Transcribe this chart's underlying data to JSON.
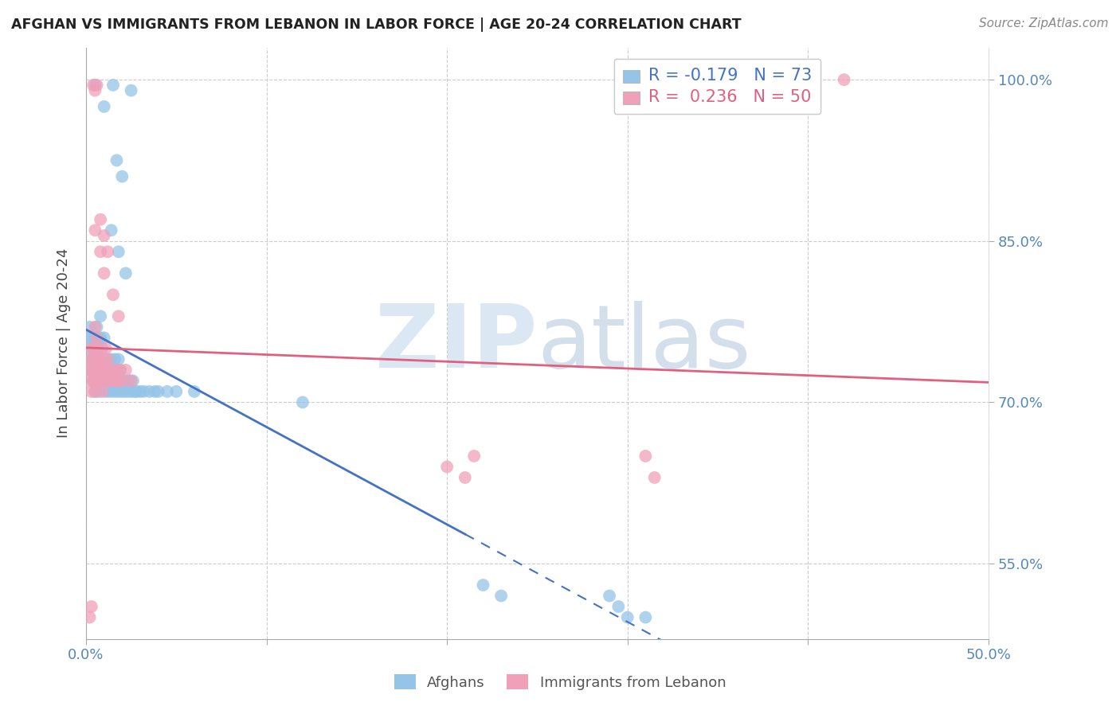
{
  "title": "AFGHAN VS IMMIGRANTS FROM LEBANON IN LABOR FORCE | AGE 20-24 CORRELATION CHART",
  "source": "Source: ZipAtlas.com",
  "ylabel": "In Labor Force | Age 20-24",
  "xlim": [
    0.0,
    0.5
  ],
  "ylim": [
    0.48,
    1.03
  ],
  "ytick_vals": [
    1.0,
    0.85,
    0.7,
    0.55
  ],
  "ytick_labels": [
    "100.0%",
    "85.0%",
    "70.0%",
    "55.0%"
  ],
  "xtick_vals": [
    0.0,
    0.1,
    0.2,
    0.3,
    0.4,
    0.5
  ],
  "xtick_labels": [
    "0.0%",
    "",
    "",
    "",
    "",
    "50.0%"
  ],
  "blue_color": "#94C4E8",
  "pink_color": "#F0A0B8",
  "blue_line_color": "#4472C4",
  "pink_line_color": "#E06080",
  "blue_line_solid_end": 0.21,
  "blue_line_dashed_end": 0.5,
  "pink_line_start": 0.0,
  "pink_line_end": 0.5,
  "background_color": "#FFFFFF",
  "grid_color": "#CCCCCC",
  "right_axis_color": "#5588BB",
  "title_color": "#222222",
  "source_color": "#888888",
  "watermark_zip_color": "#C5D8EE",
  "watermark_atlas_color": "#A8C0D8",
  "legend_blue_color": "#4472C4",
  "legend_pink_color": "#E06080",
  "blue_scatter_x": [
    0.001,
    0.002,
    0.002,
    0.003,
    0.003,
    0.003,
    0.004,
    0.004,
    0.004,
    0.005,
    0.005,
    0.005,
    0.005,
    0.006,
    0.006,
    0.006,
    0.007,
    0.007,
    0.007,
    0.008,
    0.008,
    0.008,
    0.008,
    0.009,
    0.009,
    0.01,
    0.01,
    0.01,
    0.011,
    0.011,
    0.012,
    0.012,
    0.013,
    0.013,
    0.014,
    0.014,
    0.015,
    0.015,
    0.016,
    0.016,
    0.017,
    0.017,
    0.018,
    0.018,
    0.019,
    0.019,
    0.02,
    0.021,
    0.022,
    0.023,
    0.024,
    0.025,
    0.026,
    0.027,
    0.028,
    0.03,
    0.032,
    0.035,
    0.038,
    0.04,
    0.045,
    0.05,
    0.06,
    0.014,
    0.018,
    0.022,
    0.12,
    0.22,
    0.23,
    0.29,
    0.295,
    0.3,
    0.31
  ],
  "blue_scatter_y": [
    0.76,
    0.74,
    0.77,
    0.75,
    0.73,
    0.76,
    0.74,
    0.72,
    0.75,
    0.73,
    0.71,
    0.74,
    0.76,
    0.72,
    0.74,
    0.77,
    0.73,
    0.75,
    0.71,
    0.72,
    0.74,
    0.76,
    0.78,
    0.73,
    0.75,
    0.72,
    0.74,
    0.76,
    0.73,
    0.71,
    0.72,
    0.74,
    0.73,
    0.71,
    0.72,
    0.74,
    0.73,
    0.71,
    0.72,
    0.74,
    0.73,
    0.71,
    0.72,
    0.74,
    0.73,
    0.71,
    0.72,
    0.71,
    0.72,
    0.71,
    0.72,
    0.71,
    0.72,
    0.71,
    0.71,
    0.71,
    0.71,
    0.71,
    0.71,
    0.71,
    0.71,
    0.71,
    0.71,
    0.86,
    0.84,
    0.82,
    0.7,
    0.53,
    0.52,
    0.52,
    0.51,
    0.5,
    0.5
  ],
  "pink_scatter_x": [
    0.001,
    0.002,
    0.002,
    0.003,
    0.003,
    0.003,
    0.004,
    0.004,
    0.005,
    0.005,
    0.005,
    0.005,
    0.006,
    0.006,
    0.006,
    0.007,
    0.007,
    0.008,
    0.008,
    0.009,
    0.009,
    0.01,
    0.01,
    0.011,
    0.011,
    0.012,
    0.012,
    0.013,
    0.014,
    0.015,
    0.016,
    0.017,
    0.018,
    0.019,
    0.02,
    0.022,
    0.025,
    0.005,
    0.008,
    0.01,
    0.015,
    0.018,
    0.2,
    0.21,
    0.215,
    0.31,
    0.315,
    0.002,
    0.003,
    0.42
  ],
  "pink_scatter_y": [
    0.73,
    0.72,
    0.74,
    0.71,
    0.73,
    0.75,
    0.72,
    0.74,
    0.71,
    0.73,
    0.75,
    0.77,
    0.72,
    0.74,
    0.76,
    0.73,
    0.75,
    0.72,
    0.74,
    0.73,
    0.71,
    0.72,
    0.74,
    0.73,
    0.75,
    0.72,
    0.74,
    0.73,
    0.72,
    0.73,
    0.72,
    0.73,
    0.72,
    0.73,
    0.72,
    0.73,
    0.72,
    0.86,
    0.84,
    0.82,
    0.8,
    0.78,
    0.64,
    0.63,
    0.65,
    0.65,
    0.63,
    0.5,
    0.51,
    1.0
  ],
  "blue_top_x": [
    0.005,
    0.01,
    0.015,
    0.017,
    0.02,
    0.025
  ],
  "blue_top_y": [
    0.995,
    0.975,
    0.995,
    0.925,
    0.91,
    0.99
  ],
  "pink_top_x": [
    0.004,
    0.005,
    0.006,
    0.008,
    0.01,
    0.012
  ],
  "pink_top_y": [
    0.995,
    0.99,
    0.995,
    0.87,
    0.855,
    0.84
  ]
}
